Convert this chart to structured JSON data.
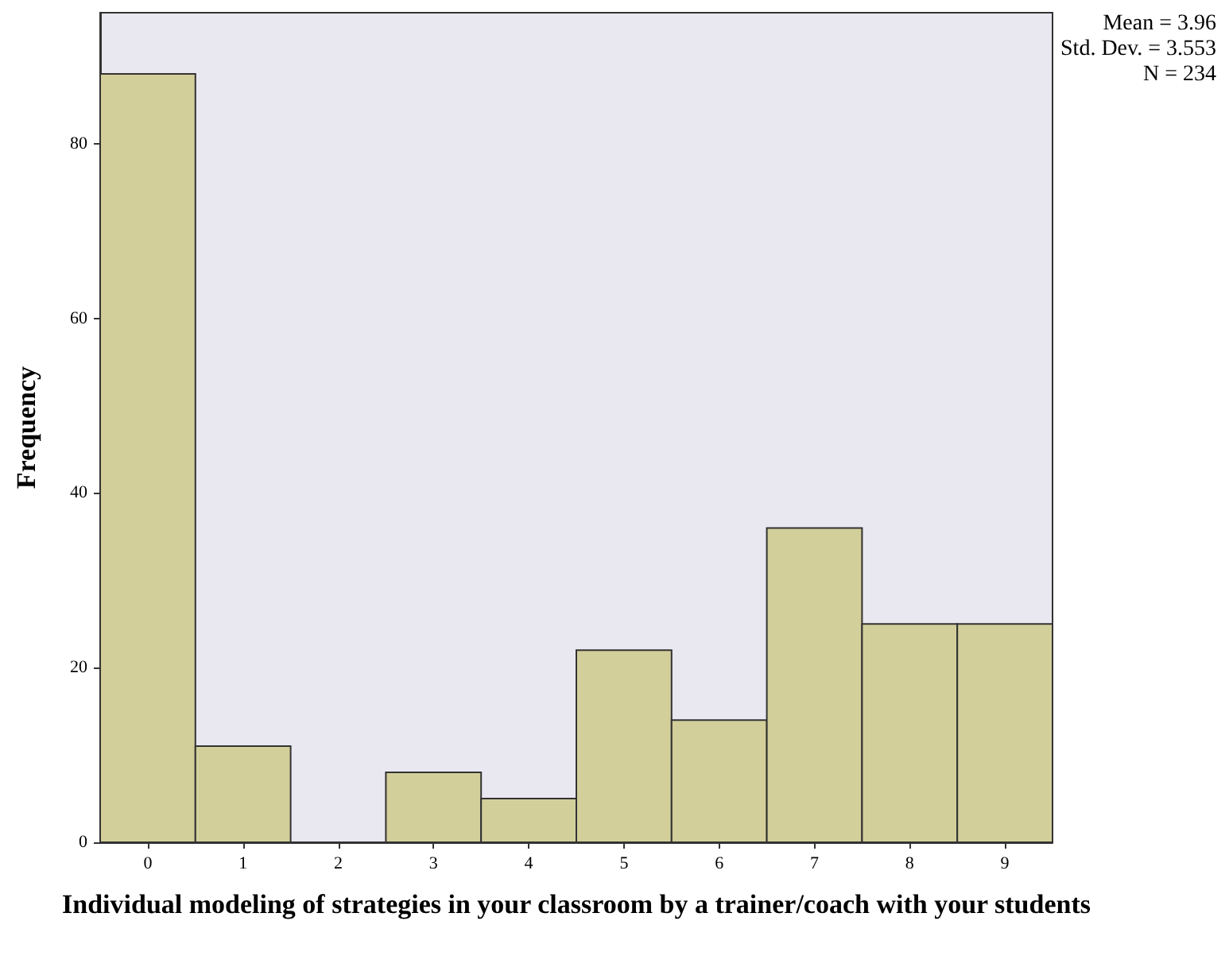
{
  "chart_data": {
    "type": "histogram",
    "xlabel": "Individual modeling of strategies in your classroom by a trainer/coach with your students",
    "ylabel": "Frequency",
    "bins": [
      -0.5,
      0.5,
      1.5,
      2.5,
      3.5,
      4.5,
      5.5,
      6.5,
      7.5,
      8.5,
      9.5
    ],
    "values": [
      88,
      11,
      0,
      8,
      5,
      22,
      14,
      36,
      25,
      25
    ],
    "color": "#d3cf9b",
    "xlim": [
      -0.5,
      9.5
    ],
    "xticks": [
      0,
      1,
      2,
      3,
      4,
      5,
      6,
      7,
      8,
      9
    ],
    "ylim": [
      0,
      95
    ],
    "yticks": [
      0,
      20,
      40,
      60,
      80
    ],
    "grid": false,
    "annotations": [
      "Mean = 3.96",
      "Std. Dev. = 3.553",
      "N = 234"
    ]
  }
}
